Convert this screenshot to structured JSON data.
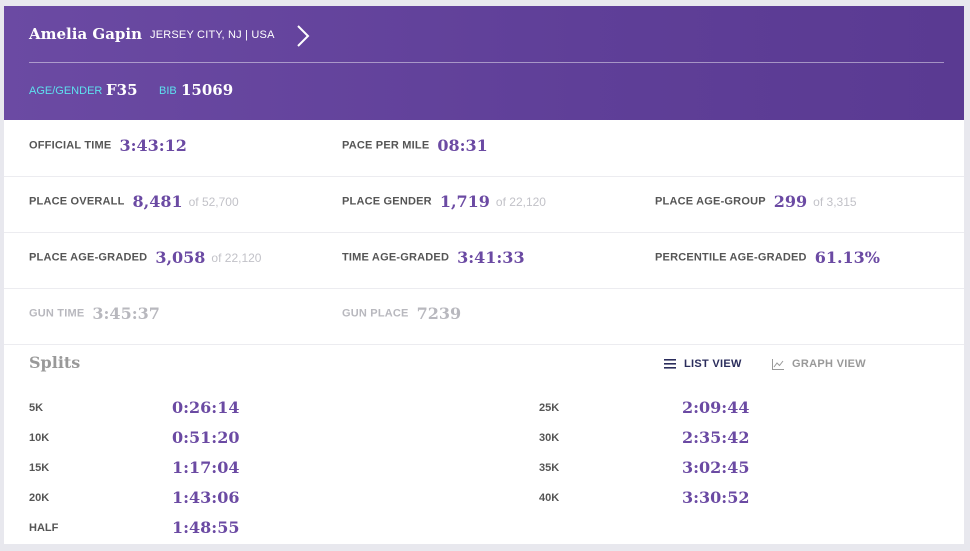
{
  "runner": {
    "name": "Amelia Gapin",
    "location": "JERSEY CITY, NJ | USA",
    "age_gender_label": "AGE/GENDER",
    "age_gender": "F35",
    "bib_label": "BIB",
    "bib": "15069"
  },
  "stats": {
    "official_time": {
      "label": "OFFICIAL TIME",
      "value": "3:43:12"
    },
    "pace_per_mile": {
      "label": "PACE PER MILE",
      "value": "08:31"
    },
    "place_overall": {
      "label": "PLACE OVERALL",
      "value": "8,481",
      "of": "of 52,700"
    },
    "place_gender": {
      "label": "PLACE GENDER",
      "value": "1,719",
      "of": "of 22,120"
    },
    "place_age_group": {
      "label": "PLACE AGE-GROUP",
      "value": "299",
      "of": "of 3,315"
    },
    "place_age_graded": {
      "label": "PLACE AGE-GRADED",
      "value": "3,058",
      "of": "of 22,120"
    },
    "time_age_graded": {
      "label": "TIME AGE-GRADED",
      "value": "3:41:33"
    },
    "percentile_age_graded": {
      "label": "PERCENTILE AGE-GRADED",
      "value": "61.13%"
    },
    "gun_time": {
      "label": "GUN TIME",
      "value": "3:45:37"
    },
    "gun_place": {
      "label": "GUN PLACE",
      "value": "7239"
    }
  },
  "splits": {
    "title": "Splits",
    "list_view_label": "LIST VIEW",
    "graph_view_label": "GRAPH VIEW",
    "active_view": "list",
    "left": [
      {
        "label": "5K",
        "time": "0:26:14"
      },
      {
        "label": "10K",
        "time": "0:51:20"
      },
      {
        "label": "15K",
        "time": "1:17:04"
      },
      {
        "label": "20K",
        "time": "1:43:06"
      },
      {
        "label": "HALF",
        "time": "1:48:55"
      }
    ],
    "right": [
      {
        "label": "25K",
        "time": "2:09:44"
      },
      {
        "label": "30K",
        "time": "2:35:42"
      },
      {
        "label": "35K",
        "time": "3:02:45"
      },
      {
        "label": "40K",
        "time": "3:30:52"
      }
    ]
  },
  "colors": {
    "header_bg": "#6b4aa3",
    "accent_cyan": "#5ee0ef",
    "value_purple": "#6b4aa3",
    "muted_gray": "#b8b8be",
    "active_view": "#2b2d5c"
  },
  "icons": {
    "header_chevron": "chevron-right-icon",
    "list_view": "list-icon",
    "graph_view": "line-chart-icon"
  }
}
